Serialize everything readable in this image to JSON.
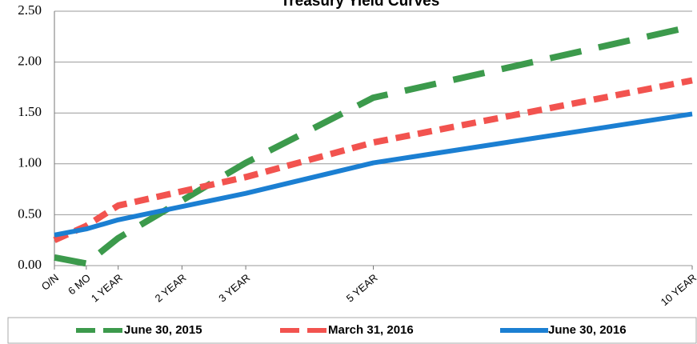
{
  "chart_data": {
    "type": "line",
    "title": "Treasury Yield Curves",
    "x": [
      0,
      0.5,
      1,
      2,
      3,
      5,
      10
    ],
    "xlim": [
      0,
      10
    ],
    "xticks": [
      {
        "value": 0,
        "label": "O/N"
      },
      {
        "value": 0.5,
        "label": "6 MO"
      },
      {
        "value": 1,
        "label": "1 YEAR"
      },
      {
        "value": 2,
        "label": "2 YEAR"
      },
      {
        "value": 3,
        "label": "3 YEAR"
      },
      {
        "value": 5,
        "label": "5 YEAR"
      },
      {
        "value": 10,
        "label": "10 YEAR"
      }
    ],
    "ylim": [
      0,
      2.5
    ],
    "yticks": [
      {
        "value": 0,
        "label": "0.00"
      },
      {
        "value": 0.5,
        "label": "0.50"
      },
      {
        "value": 1,
        "label": "1.00"
      },
      {
        "value": 1.5,
        "label": "1.50"
      },
      {
        "value": 2,
        "label": "2.00"
      },
      {
        "value": 2.5,
        "label": "2.50"
      }
    ],
    "grid": true,
    "legend": "bottom",
    "series": [
      {
        "name": "June 30, 2015",
        "color": "#3c9a4c",
        "dash": "40 22",
        "values": [
          0.08,
          0.02,
          0.27,
          0.64,
          1.01,
          1.65,
          2.35
        ]
      },
      {
        "name": "March 31, 2016",
        "color": "#f2534f",
        "dash": "18 10",
        "values": [
          0.25,
          0.39,
          0.59,
          0.73,
          0.87,
          1.21,
          1.82
        ]
      },
      {
        "name": "June 30, 2016",
        "color": "#1b7fd2",
        "dash": null,
        "values": [
          0.3,
          0.36,
          0.45,
          0.58,
          0.71,
          1.01,
          1.49
        ]
      }
    ]
  }
}
